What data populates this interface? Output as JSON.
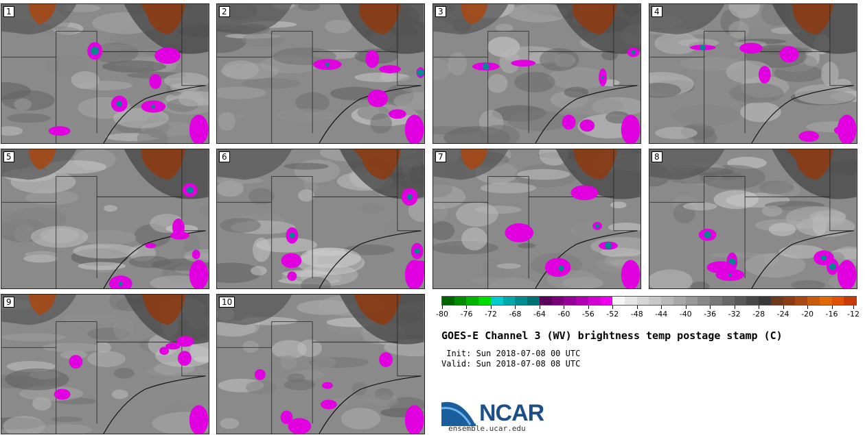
{
  "panels": [
    "1",
    "2",
    "3",
    "4",
    "5",
    "6",
    "7",
    "8",
    "9",
    "10"
  ],
  "colorbar": {
    "colors": [
      "#006400",
      "#008c00",
      "#00b400",
      "#00dc00",
      "#00cccc",
      "#00a8a8",
      "#008c8c",
      "#007070",
      "#5a005a",
      "#780078",
      "#960096",
      "#b400b4",
      "#d200d2",
      "#f000f0",
      "#f5f5f5",
      "#e6e6e6",
      "#d6d6d6",
      "#c8c8c8",
      "#b8b8b8",
      "#a8a8a8",
      "#989898",
      "#888888",
      "#787878",
      "#686868",
      "#585858",
      "#484848",
      "#383838",
      "#6e3a1e",
      "#8c3c14",
      "#a84812",
      "#c85a0c",
      "#e06a08",
      "#e05006",
      "#c83a08"
    ],
    "tick_labels": [
      "-80",
      "-76",
      "-72",
      "-68",
      "-64",
      "-60",
      "-56",
      "-52",
      "-48",
      "-44",
      "-40",
      "-36",
      "-32",
      "-28",
      "-24",
      "-20",
      "-16",
      "-12"
    ]
  },
  "title": "GOES-E Channel 3 (WV) brightness temp postage stamp (C)",
  "init": " Init: Sun 2018-07-08 00 UTC",
  "valid": "Valid: Sun 2018-07-08 08 UTC",
  "logo_text": "NCAR",
  "site": "ensemble.ucar.edu"
}
